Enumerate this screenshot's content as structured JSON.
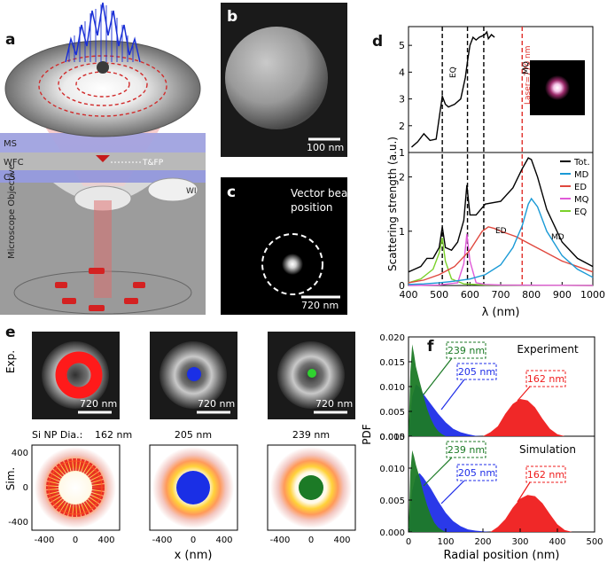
{
  "panels": {
    "a": {
      "label": "a",
      "layers": [
        "MS",
        "WFC",
        "CS"
      ],
      "focus": "T&FP",
      "wi": "WI",
      "objective": "Microscope Objective"
    },
    "b": {
      "label": "b",
      "scale": "100 nm"
    },
    "c": {
      "label": "c",
      "title_line1": "Vector beam",
      "title_line2": "position",
      "scale": "720 nm"
    },
    "d": {
      "label": "d",
      "laser": "Laser=770 nm",
      "modes_top": [
        "EQ",
        "MQ",
        "ED"
      ],
      "curve_labels": [
        "ED",
        "MD"
      ]
    },
    "e": {
      "label": "e",
      "row_exp": "Exp.",
      "row_sim": "Sim.",
      "scale": "720 nm",
      "diam_caption": "Si NP Dia.:",
      "diameters": [
        "162 nm",
        "205 nm",
        "239 nm"
      ],
      "xlabel": "x (nm)",
      "ticks": [
        "-400",
        "0",
        "400"
      ],
      "yticks": [
        "400",
        "0",
        "-400"
      ]
    },
    "f": {
      "label": "f",
      "ylabel": "PDF",
      "xlabel": "Radial position (nm)",
      "experiment": "Experiment",
      "simulation": "Simulation",
      "size_labels": [
        "239 nm",
        "205 nm",
        "162 nm"
      ]
    }
  },
  "chart_data": [
    {
      "id": "d-top",
      "type": "line",
      "title": "",
      "xlabel": "",
      "ylabel": "Scattering strength (a.u.)",
      "xlim": [
        400,
        1000
      ],
      "ylim": [
        1,
        5.7
      ],
      "yticks": [
        1,
        2,
        3,
        4,
        5
      ],
      "series": [
        {
          "name": "measured",
          "color": "#000000",
          "x": [
            410,
            430,
            450,
            470,
            490,
            500,
            510,
            520,
            530,
            550,
            570,
            585,
            592,
            600,
            610,
            620,
            630,
            640,
            648,
            655,
            660,
            670,
            680
          ],
          "y": [
            1.2,
            1.4,
            1.7,
            1.45,
            1.5,
            2.3,
            3.1,
            2.8,
            2.7,
            2.8,
            3.0,
            3.8,
            4.4,
            5.0,
            5.3,
            5.2,
            5.3,
            5.35,
            5.4,
            5.5,
            5.25,
            5.4,
            5.3
          ]
        }
      ],
      "vlines": [
        {
          "x": 510,
          "color": "#000",
          "label": "EQ"
        },
        {
          "x": 592,
          "color": "#000",
          "label": "MQ"
        },
        {
          "x": 645,
          "color": "#000",
          "label": "ED"
        },
        {
          "x": 770,
          "color": "#e0302a",
          "label": "Laser=770 nm"
        }
      ]
    },
    {
      "id": "d-bottom",
      "type": "line",
      "xlabel": "λ (nm)",
      "ylabel": "",
      "xlim": [
        400,
        1000
      ],
      "ylim": [
        0,
        2.45
      ],
      "xticks": [
        400,
        500,
        600,
        700,
        800,
        900,
        1000
      ],
      "yticks": [
        0,
        1,
        2
      ],
      "legend": "top-right",
      "series": [
        {
          "name": "Tot.",
          "color": "#000000",
          "x": [
            400,
            420,
            440,
            460,
            480,
            500,
            510,
            520,
            540,
            560,
            580,
            590,
            600,
            620,
            650,
            700,
            740,
            770,
            790,
            800,
            820,
            850,
            900,
            950,
            1000
          ],
          "y": [
            0.25,
            0.3,
            0.35,
            0.5,
            0.5,
            0.7,
            1.08,
            0.7,
            0.65,
            0.8,
            1.2,
            1.85,
            1.3,
            1.3,
            1.5,
            1.55,
            1.8,
            2.15,
            2.35,
            2.32,
            2.0,
            1.4,
            0.8,
            0.5,
            0.35
          ]
        },
        {
          "name": "MD",
          "color": "#1a9ad6",
          "x": [
            400,
            450,
            500,
            550,
            600,
            650,
            700,
            740,
            770,
            790,
            800,
            820,
            850,
            900,
            950,
            1000
          ],
          "y": [
            0.02,
            0.03,
            0.05,
            0.08,
            0.12,
            0.2,
            0.38,
            0.7,
            1.1,
            1.5,
            1.6,
            1.45,
            1.0,
            0.55,
            0.3,
            0.15
          ]
        },
        {
          "name": "ED",
          "color": "#e0483e",
          "x": [
            400,
            450,
            500,
            550,
            600,
            640,
            660,
            680,
            700,
            750,
            800,
            850,
            900,
            950,
            1000
          ],
          "y": [
            0.05,
            0.1,
            0.2,
            0.35,
            0.65,
            1.0,
            1.08,
            1.05,
            1.0,
            0.9,
            0.75,
            0.6,
            0.45,
            0.35,
            0.25
          ]
        },
        {
          "name": "MQ",
          "color": "#e05ad8",
          "x": [
            400,
            500,
            560,
            580,
            590,
            600,
            620,
            650,
            700,
            1000
          ],
          "y": [
            0.0,
            0.01,
            0.05,
            0.4,
            0.95,
            0.45,
            0.05,
            0.02,
            0.01,
            0.0
          ]
        },
        {
          "name": "EQ",
          "color": "#7ad12a",
          "x": [
            400,
            440,
            480,
            500,
            510,
            520,
            540,
            580,
            650,
            1000
          ],
          "y": [
            0.05,
            0.12,
            0.3,
            0.6,
            0.88,
            0.45,
            0.12,
            0.03,
            0.01,
            0.0
          ]
        }
      ]
    },
    {
      "id": "f-experiment",
      "type": "area",
      "xlim": [
        0,
        500
      ],
      "ylim": [
        0,
        0.02
      ],
      "yticks": [
        0,
        0.005,
        0.01,
        0.015,
        0.02
      ],
      "ytick_labels": [
        "0.000",
        "0.005",
        "0.010",
        "0.015",
        "0.020"
      ],
      "series": [
        {
          "name": "162 nm",
          "color": "#ef1c1c",
          "x": [
            200,
            220,
            240,
            260,
            280,
            300,
            320,
            340,
            360,
            380,
            400,
            420
          ],
          "y": [
            0,
            0.0008,
            0.002,
            0.0045,
            0.0065,
            0.0075,
            0.0072,
            0.0058,
            0.0035,
            0.0015,
            0.0004,
            0
          ]
        },
        {
          "name": "205 nm",
          "color": "#1f2ee8",
          "x": [
            0,
            10,
            20,
            30,
            40,
            60,
            80,
            100,
            120,
            140,
            160,
            180,
            200
          ],
          "y": [
            0,
            0.008,
            0.0105,
            0.0098,
            0.0085,
            0.0065,
            0.0045,
            0.0028,
            0.0015,
            0.0008,
            0.0004,
            0.0001,
            0
          ]
        },
        {
          "name": "239 nm",
          "color": "#1c7a26",
          "x": [
            0,
            5,
            10,
            15,
            20,
            30,
            40,
            50,
            60,
            70,
            80,
            90,
            100
          ],
          "y": [
            0,
            0.013,
            0.0185,
            0.0165,
            0.014,
            0.011,
            0.0082,
            0.0055,
            0.0035,
            0.002,
            0.001,
            0.0004,
            0
          ]
        }
      ]
    },
    {
      "id": "f-simulation",
      "type": "area",
      "xlim": [
        0,
        500
      ],
      "ylim": [
        0,
        0.015
      ],
      "xticks": [
        0,
        100,
        200,
        300,
        400,
        500
      ],
      "yticks": [
        0,
        0.005,
        0.01,
        0.015
      ],
      "ytick_labels": [
        "0.000",
        "0.005",
        "0.010",
        "0.015"
      ],
      "series": [
        {
          "name": "162 nm",
          "color": "#ef1c1c",
          "x": [
            220,
            240,
            260,
            280,
            300,
            320,
            340,
            360,
            380,
            400,
            420,
            440
          ],
          "y": [
            0,
            0.0008,
            0.002,
            0.0038,
            0.0052,
            0.0058,
            0.0056,
            0.0045,
            0.0028,
            0.0012,
            0.0003,
            0
          ]
        },
        {
          "name": "205 nm",
          "color": "#1f2ee8",
          "x": [
            0,
            10,
            20,
            30,
            40,
            60,
            80,
            100,
            120,
            140,
            160,
            180,
            200,
            220
          ],
          "y": [
            0,
            0.0065,
            0.0088,
            0.0092,
            0.0085,
            0.0068,
            0.0048,
            0.003,
            0.0017,
            0.0009,
            0.0004,
            0.0002,
            0.0001,
            0
          ]
        },
        {
          "name": "239 nm",
          "color": "#1c7a26",
          "x": [
            0,
            5,
            10,
            15,
            20,
            30,
            40,
            50,
            60,
            70,
            80,
            90,
            100
          ],
          "y": [
            0,
            0.0095,
            0.0128,
            0.0118,
            0.0105,
            0.0085,
            0.0062,
            0.0042,
            0.0026,
            0.0014,
            0.0007,
            0.0003,
            0
          ]
        }
      ]
    }
  ]
}
